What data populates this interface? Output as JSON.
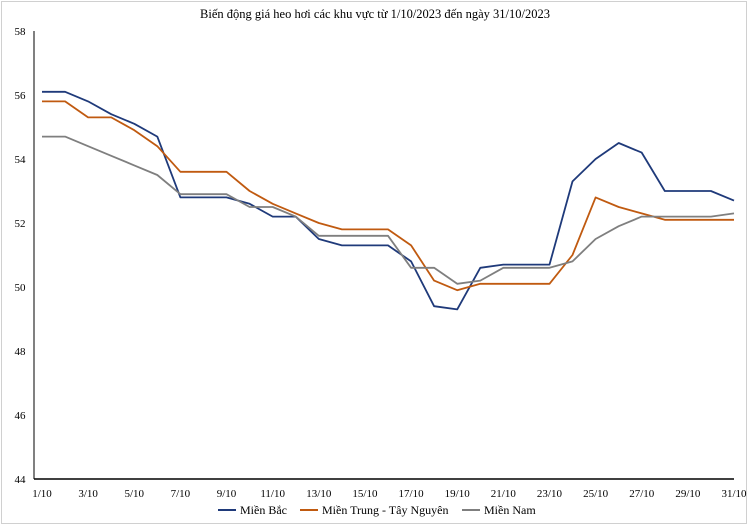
{
  "chart_data": {
    "type": "line",
    "title": "Biến  động giá heo hơi các khu vực từ 1/10/2023 đến ngày 31/10/2023",
    "xlabel": "",
    "ylabel": "",
    "ylim": [
      44,
      58
    ],
    "yticks": [
      44,
      46,
      48,
      50,
      52,
      54,
      56,
      58
    ],
    "grid": false,
    "legend_position": "bottom",
    "x": [
      "1/10",
      "2/10",
      "3/10",
      "4/10",
      "5/10",
      "6/10",
      "7/10",
      "8/10",
      "9/10",
      "10/10",
      "11/10",
      "12/10",
      "13/10",
      "14/10",
      "15/10",
      "16/10",
      "17/10",
      "18/10",
      "19/10",
      "20/10",
      "21/10",
      "22/10",
      "23/10",
      "24/10",
      "25/10",
      "26/10",
      "27/10",
      "28/10",
      "29/10",
      "30/10",
      "31/10"
    ],
    "xtick_labels": [
      "1/10",
      "3/10",
      "5/10",
      "7/10",
      "9/10",
      "11/10",
      "13/10",
      "15/10",
      "17/10",
      "19/10",
      "21/10",
      "23/10",
      "25/10",
      "27/10",
      "29/10",
      "31/10"
    ],
    "series": [
      {
        "name": "Miền Bắc",
        "color": "#1f3a7a",
        "values": [
          56.1,
          56.1,
          55.8,
          55.4,
          55.1,
          54.7,
          52.8,
          52.8,
          52.8,
          52.6,
          52.2,
          52.2,
          51.5,
          51.3,
          51.3,
          51.3,
          50.8,
          49.4,
          49.3,
          50.6,
          50.7,
          50.7,
          50.7,
          53.3,
          54.0,
          54.5,
          54.2,
          53.0,
          53.0,
          53.0,
          52.7
        ]
      },
      {
        "name": "Miền Trung - Tây Nguyên",
        "color": "#c05a10",
        "values": [
          55.8,
          55.8,
          55.3,
          55.3,
          54.9,
          54.4,
          53.6,
          53.6,
          53.6,
          53.0,
          52.6,
          52.3,
          52.0,
          51.8,
          51.8,
          51.8,
          51.3,
          50.2,
          49.9,
          50.1,
          50.1,
          50.1,
          50.1,
          51.0,
          52.8,
          52.5,
          52.3,
          52.1,
          52.1,
          52.1,
          52.1
        ]
      },
      {
        "name": "Miền Nam",
        "color": "#7f7f7f",
        "values": [
          54.7,
          54.7,
          54.4,
          54.1,
          53.8,
          53.5,
          52.9,
          52.9,
          52.9,
          52.5,
          52.5,
          52.2,
          51.6,
          51.6,
          51.6,
          51.6,
          50.6,
          50.6,
          50.1,
          50.2,
          50.6,
          50.6,
          50.6,
          50.8,
          51.5,
          51.9,
          52.2,
          52.2,
          52.2,
          52.2,
          52.3
        ]
      }
    ]
  }
}
